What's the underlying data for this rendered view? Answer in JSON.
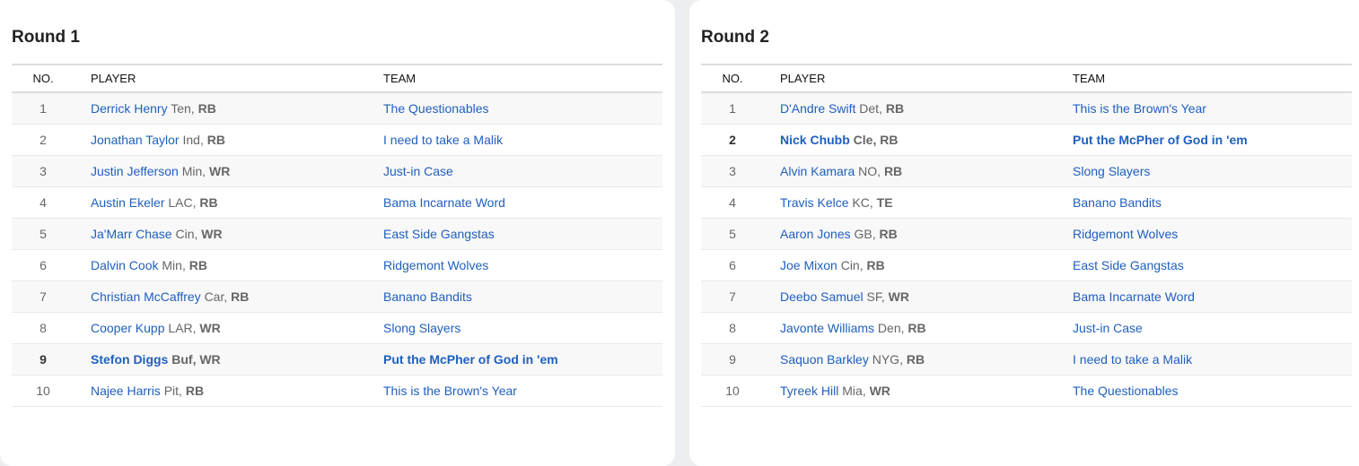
{
  "headers": {
    "no": "NO.",
    "player": "PLAYER",
    "team": "TEAM"
  },
  "rounds": [
    {
      "title": "Round 1",
      "highlight": 9,
      "picks": [
        {
          "no": "1",
          "player": "Derrick Henry",
          "nfl": "Ten",
          "pos": "RB",
          "team": "The Questionables"
        },
        {
          "no": "2",
          "player": "Jonathan Taylor",
          "nfl": "Ind",
          "pos": "RB",
          "team": "I need to take a Malik"
        },
        {
          "no": "3",
          "player": "Justin Jefferson",
          "nfl": "Min",
          "pos": "WR",
          "team": "Just-in Case"
        },
        {
          "no": "4",
          "player": "Austin Ekeler",
          "nfl": "LAC",
          "pos": "RB",
          "team": "Bama Incarnate Word"
        },
        {
          "no": "5",
          "player": "Ja'Marr Chase",
          "nfl": "Cin",
          "pos": "WR",
          "team": "East Side Gangstas"
        },
        {
          "no": "6",
          "player": "Dalvin Cook",
          "nfl": "Min",
          "pos": "RB",
          "team": "Ridgemont Wolves"
        },
        {
          "no": "7",
          "player": "Christian McCaffrey",
          "nfl": "Car",
          "pos": "RB",
          "team": "Banano Bandits"
        },
        {
          "no": "8",
          "player": "Cooper Kupp",
          "nfl": "LAR",
          "pos": "WR",
          "team": "Slong Slayers"
        },
        {
          "no": "9",
          "player": "Stefon Diggs",
          "nfl": "Buf",
          "pos": "WR",
          "team": "Put the McPher of God in 'em"
        },
        {
          "no": "10",
          "player": "Najee Harris",
          "nfl": "Pit",
          "pos": "RB",
          "team": "This is the Brown's Year"
        }
      ]
    },
    {
      "title": "Round 2",
      "highlight": 2,
      "picks": [
        {
          "no": "1",
          "player": "D'Andre Swift",
          "nfl": "Det",
          "pos": "RB",
          "team": "This is the Brown's Year"
        },
        {
          "no": "2",
          "player": "Nick Chubb",
          "nfl": "Cle",
          "pos": "RB",
          "team": "Put the McPher of God in 'em"
        },
        {
          "no": "3",
          "player": "Alvin Kamara",
          "nfl": "NO",
          "pos": "RB",
          "team": "Slong Slayers"
        },
        {
          "no": "4",
          "player": "Travis Kelce",
          "nfl": "KC",
          "pos": "TE",
          "team": "Banano Bandits"
        },
        {
          "no": "5",
          "player": "Aaron Jones",
          "nfl": "GB",
          "pos": "RB",
          "team": "Ridgemont Wolves"
        },
        {
          "no": "6",
          "player": "Joe Mixon",
          "nfl": "Cin",
          "pos": "RB",
          "team": "East Side Gangstas"
        },
        {
          "no": "7",
          "player": "Deebo Samuel",
          "nfl": "SF",
          "pos": "WR",
          "team": "Bama Incarnate Word"
        },
        {
          "no": "8",
          "player": "Javonte Williams",
          "nfl": "Den",
          "pos": "RB",
          "team": "Just-in Case"
        },
        {
          "no": "9",
          "player": "Saquon Barkley",
          "nfl": "NYG",
          "pos": "RB",
          "team": "I need to take a Malik"
        },
        {
          "no": "10",
          "player": "Tyreek Hill",
          "nfl": "Mia",
          "pos": "WR",
          "team": "The Questionables"
        }
      ]
    }
  ]
}
